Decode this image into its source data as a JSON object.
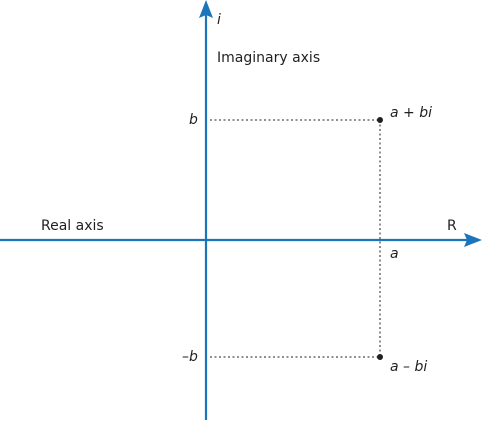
{
  "colors": {
    "axis": "#1b75bb",
    "ink": "#231f20"
  },
  "axes": {
    "horizontal_label": "Real axis",
    "horizontal_symbol": "R",
    "vertical_label": "Imaginary axis",
    "vertical_symbol": "i"
  },
  "ticks": {
    "a": "a",
    "b": "b",
    "neg_b": "–b"
  },
  "points": [
    {
      "label": "a + bi"
    },
    {
      "label": "a – bi"
    }
  ]
}
